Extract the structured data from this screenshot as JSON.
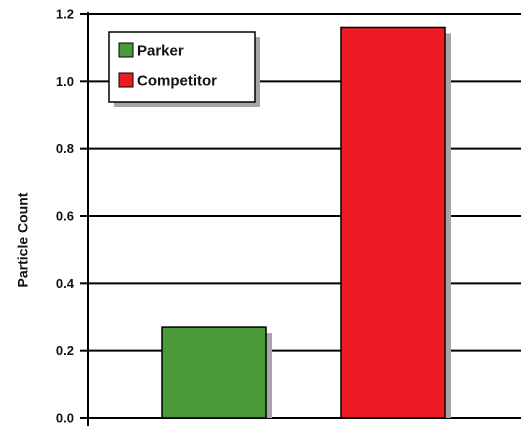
{
  "chart_data": {
    "type": "bar",
    "categories": [
      "Parker",
      "Competitor"
    ],
    "series": [
      {
        "name": "Parker",
        "values": [
          0.27,
          null
        ],
        "color": "#4a9a3a"
      },
      {
        "name": "Competitor",
        "values": [
          null,
          1.16
        ],
        "color": "#ed1c24"
      }
    ],
    "values": [
      0.27,
      1.16
    ],
    "ylabel": "Particle Count",
    "xlabel": "",
    "ylim": [
      0,
      1.2
    ],
    "yticks": [
      "0.0",
      "0.2",
      "0.4",
      "0.6",
      "0.8",
      "1.0",
      "1.2"
    ],
    "ytick_values": [
      0,
      0.2,
      0.4,
      0.6,
      0.8,
      1.0,
      1.2
    ],
    "grid": true,
    "legend_position": "top-left",
    "legend": [
      "Parker",
      "Competitor"
    ]
  }
}
